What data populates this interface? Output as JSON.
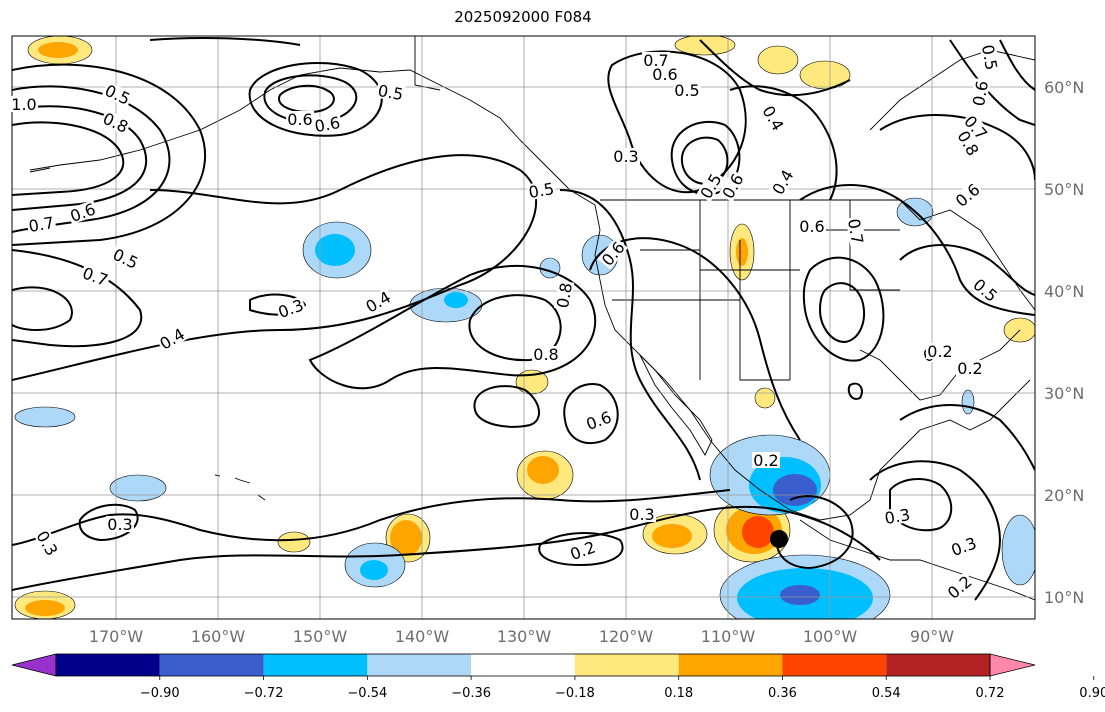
{
  "title": "2025092000 F084",
  "map": {
    "lon_ticks": [
      "170°W",
      "160°W",
      "150°W",
      "140°W",
      "130°W",
      "120°W",
      "110°W",
      "100°W",
      "90°W"
    ],
    "lat_ticks": [
      "60°N",
      "50°N",
      "40°N",
      "30°N",
      "20°N",
      "10°N"
    ],
    "contour_labels": [
      "0.5",
      "0.8",
      "1.0",
      "0.7",
      "0.6",
      "0.5",
      "0.7",
      "0.6",
      "0.6",
      "0.5",
      "0.4",
      "0.3",
      "0.4",
      "0.5",
      "0.3",
      "0.7",
      "0.6",
      "0.5",
      "0.8",
      "0.6",
      "0.4",
      "0.5",
      "0.6",
      "0.4",
      "0.6",
      "0.7",
      "0.8",
      "0.6",
      "0.5",
      "0.7",
      "0.6",
      "0.8",
      "0.6",
      "0.5",
      "0.3",
      "0.2",
      "0.3",
      "0.3",
      "0.3",
      "0.2",
      "0.2",
      "0.3",
      "0.3",
      "0.2",
      "0.2"
    ],
    "storm_marker": "black dot"
  },
  "colorbar": {
    "colors": [
      "#9932cc",
      "#00008b",
      "#3a5fcd",
      "#00bfff",
      "#add8f7",
      "#ffffff",
      "#ffe97f",
      "#ffa500",
      "#ff4500",
      "#b22222",
      "#ff88aa"
    ],
    "tick_labels": [
      "−0.90",
      "−0.72",
      "−0.54",
      "−0.36",
      "−0.18",
      "0.18",
      "0.36",
      "0.54",
      "0.72",
      "0.90"
    ]
  }
}
